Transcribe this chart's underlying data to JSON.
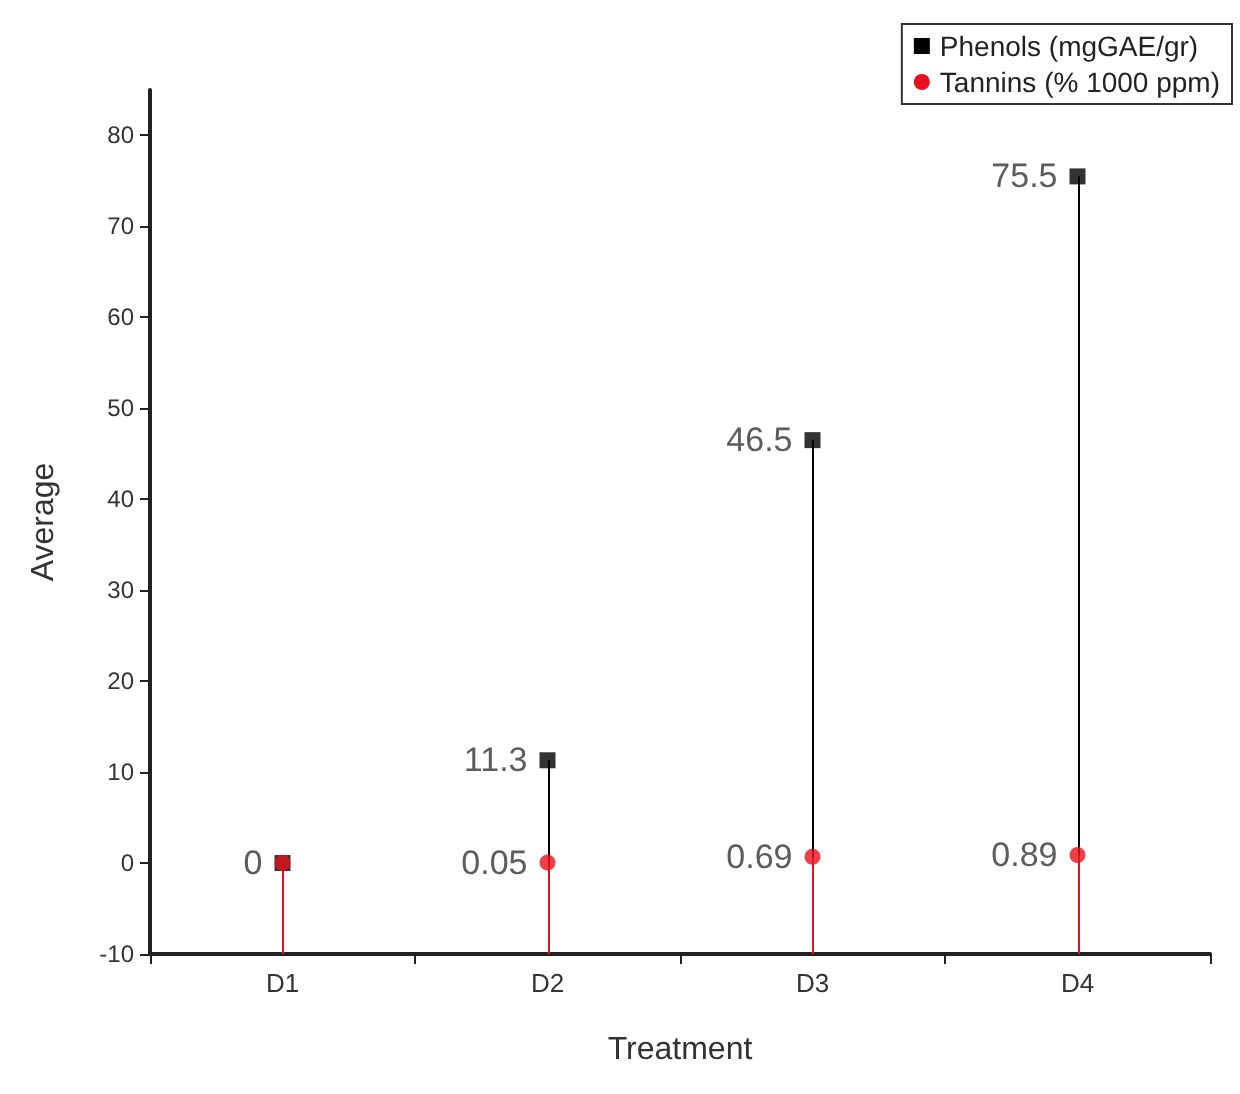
{
  "chart_data": {
    "type": "lollipop",
    "xlabel": "Treatment",
    "ylabel": "Average",
    "categories": [
      "D1",
      "D2",
      "D3",
      "D4"
    ],
    "series": [
      {
        "name": "Phenols (mgGAE/gr)",
        "color": "#000000",
        "marker": "square",
        "values": [
          0,
          11.3,
          46.5,
          75.5
        ],
        "value_labels": [
          null,
          "11.3",
          "46.5",
          "75.5"
        ]
      },
      {
        "name": "Tannins (% 1000 ppm)",
        "color": "#e8101c",
        "marker": "circle",
        "values": [
          0,
          0.05,
          0.69,
          0.89
        ],
        "value_labels": [
          "0",
          "0.05",
          "0.69",
          "0.89"
        ]
      }
    ],
    "ylim": [
      -10,
      85
    ],
    "yticks": [
      -10,
      0,
      10,
      20,
      30,
      40,
      50,
      60,
      70,
      80
    ],
    "legend": "top right"
  }
}
